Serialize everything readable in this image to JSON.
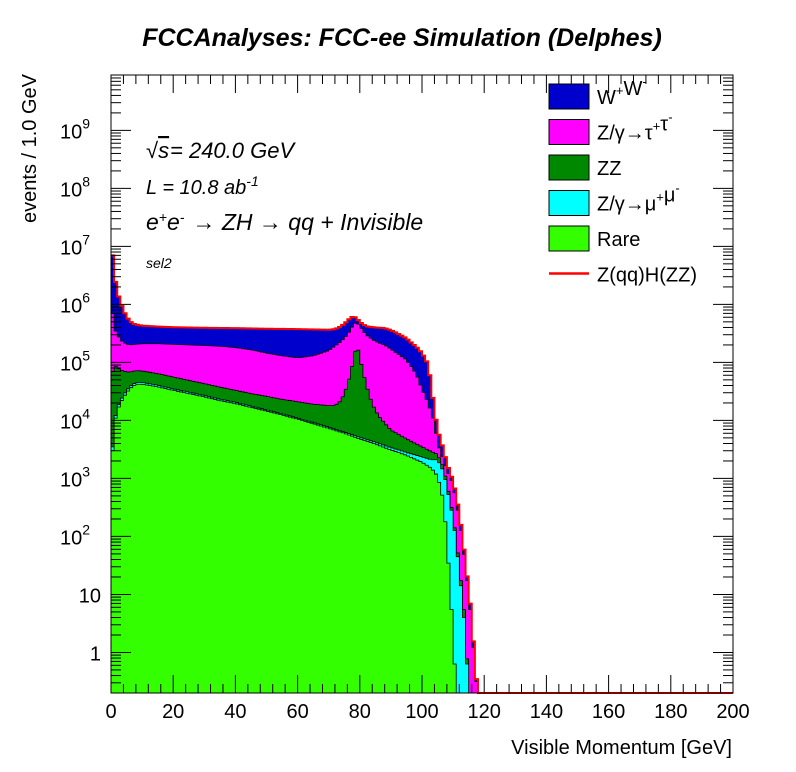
{
  "chart_data": {
    "type": "area",
    "stacked": true,
    "title": "FCCAnalyses: FCC-ee Simulation (Delphes)",
    "xlabel": "Visible Momentum [GeV]",
    "ylabel": "events / 1.0 GeV",
    "xlim": [
      0,
      200
    ],
    "ylim": [
      0.2,
      9000000000
    ],
    "log_y": true,
    "grid": false,
    "legend_position": "top-right",
    "x_ticks": [
      "0",
      "20",
      "40",
      "60",
      "80",
      "100",
      "120",
      "140",
      "160",
      "180",
      "200"
    ],
    "y_ticks": [
      {
        "value": 1,
        "label": "1"
      },
      {
        "value": 10,
        "label": "10"
      },
      {
        "value": 100,
        "label": "10",
        "sup": "2"
      },
      {
        "value": 1000,
        "label": "10",
        "sup": "3"
      },
      {
        "value": 10000,
        "label": "10",
        "sup": "4"
      },
      {
        "value": 100000,
        "label": "10",
        "sup": "5"
      },
      {
        "value": 1000000,
        "label": "10",
        "sup": "6"
      },
      {
        "value": 10000000,
        "label": "10",
        "sup": "7"
      },
      {
        "value": 100000000,
        "label": "10",
        "sup": "8"
      },
      {
        "value": 1000000000,
        "label": "10",
        "sup": "9"
      }
    ],
    "annotations": {
      "sqrt_s": "= 240.0 GeV",
      "lumi": "L = 10.8 ab",
      "lumi_sup": "-1",
      "process": "→ ZH → qq + Invisible",
      "selection": "sel2"
    },
    "note": "x = bin centre in GeV; y = cumulative stacked event counts per bin (top of each band)",
    "series": [
      {
        "name": "Rare",
        "color": "#33ff00",
        "points": [
          [
            0.5,
            3000
          ],
          [
            1,
            8000
          ],
          [
            2,
            15000
          ],
          [
            4,
            25000
          ],
          [
            6,
            35000
          ],
          [
            8,
            42000
          ],
          [
            10,
            42000
          ],
          [
            15,
            38000
          ],
          [
            20,
            33000
          ],
          [
            25,
            29000
          ],
          [
            30,
            25500
          ],
          [
            35,
            22000
          ],
          [
            40,
            19500
          ],
          [
            45,
            16800
          ],
          [
            50,
            14500
          ],
          [
            55,
            12400
          ],
          [
            60,
            10500
          ],
          [
            65,
            8800
          ],
          [
            70,
            7300
          ],
          [
            75,
            6000
          ],
          [
            80,
            4800
          ],
          [
            85,
            3900
          ],
          [
            90,
            3100
          ],
          [
            95,
            2500
          ],
          [
            100,
            1900
          ],
          [
            103,
            1500
          ],
          [
            105,
            1100
          ],
          [
            107,
            400
          ],
          [
            108,
            80
          ],
          [
            109,
            15
          ],
          [
            110,
            2
          ],
          [
            111,
            0.2
          ]
        ]
      },
      {
        "name": "Z/γ→μ⁺μ⁻",
        "color": "#00ffff",
        "points": [
          [
            0.5,
            3500
          ],
          [
            1,
            9000
          ],
          [
            2,
            16500
          ],
          [
            4,
            27500
          ],
          [
            6,
            38000
          ],
          [
            8,
            45000
          ],
          [
            10,
            45000
          ],
          [
            15,
            40500
          ],
          [
            20,
            35000
          ],
          [
            25,
            30800
          ],
          [
            30,
            27000
          ],
          [
            35,
            23300
          ],
          [
            40,
            20600
          ],
          [
            45,
            17700
          ],
          [
            50,
            15200
          ],
          [
            55,
            13000
          ],
          [
            60,
            11000
          ],
          [
            65,
            9200
          ],
          [
            70,
            7700
          ],
          [
            75,
            6300
          ],
          [
            80,
            5100
          ],
          [
            85,
            4200
          ],
          [
            90,
            3400
          ],
          [
            95,
            2800
          ],
          [
            100,
            2350
          ],
          [
            103,
            2100
          ],
          [
            105,
            2100
          ],
          [
            107,
            1300
          ],
          [
            108,
            700
          ],
          [
            109,
            400
          ],
          [
            110,
            200
          ],
          [
            111,
            80
          ],
          [
            112,
            25
          ],
          [
            113,
            8
          ],
          [
            114,
            2
          ],
          [
            115,
            0.2
          ]
        ]
      },
      {
        "name": "ZZ",
        "color": "#008800",
        "points": [
          [
            0.5,
            70000
          ],
          [
            1,
            90000
          ],
          [
            2,
            80000
          ],
          [
            4,
            70000
          ],
          [
            6,
            68000
          ],
          [
            8,
            72000
          ],
          [
            10,
            71000
          ],
          [
            15,
            64000
          ],
          [
            20,
            56000
          ],
          [
            25,
            49000
          ],
          [
            30,
            43000
          ],
          [
            35,
            37500
          ],
          [
            40,
            33000
          ],
          [
            45,
            29000
          ],
          [
            50,
            26000
          ],
          [
            55,
            23000
          ],
          [
            60,
            21000
          ],
          [
            65,
            19000
          ],
          [
            70,
            18000
          ],
          [
            72,
            18000
          ],
          [
            74,
            22000
          ],
          [
            76,
            40000
          ],
          [
            78,
            110000
          ],
          [
            79,
            220000
          ],
          [
            80,
            120000
          ],
          [
            82,
            42000
          ],
          [
            84,
            19000
          ],
          [
            86,
            12000
          ],
          [
            88,
            9000
          ],
          [
            90,
            6800
          ],
          [
            95,
            4800
          ],
          [
            100,
            3500
          ],
          [
            103,
            2900
          ],
          [
            105,
            2600
          ],
          [
            107,
            1500
          ],
          [
            108,
            800
          ],
          [
            109,
            450
          ],
          [
            110,
            220
          ],
          [
            111,
            90
          ],
          [
            112,
            30
          ],
          [
            113,
            10
          ],
          [
            114,
            3
          ],
          [
            115,
            0.2
          ]
        ]
      },
      {
        "name": "Z/γ→τ⁺τ⁻",
        "color": "#ff00ff",
        "points": [
          [
            0.5,
            700000
          ],
          [
            1,
            400000
          ],
          [
            2,
            300000
          ],
          [
            3,
            250000
          ],
          [
            4,
            220000
          ],
          [
            6,
            200000
          ],
          [
            8,
            205000
          ],
          [
            10,
            210000
          ],
          [
            15,
            210000
          ],
          [
            20,
            205000
          ],
          [
            25,
            200000
          ],
          [
            30,
            195000
          ],
          [
            35,
            190000
          ],
          [
            40,
            180000
          ],
          [
            45,
            165000
          ],
          [
            50,
            145000
          ],
          [
            55,
            130000
          ],
          [
            60,
            120000
          ],
          [
            65,
            130000
          ],
          [
            70,
            160000
          ],
          [
            74,
            230000
          ],
          [
            76,
            300000
          ],
          [
            78,
            450000
          ],
          [
            79,
            500000
          ],
          [
            80,
            420000
          ],
          [
            82,
            300000
          ],
          [
            85,
            230000
          ],
          [
            88,
            200000
          ],
          [
            90,
            170000
          ],
          [
            95,
            110000
          ],
          [
            98,
            65000
          ],
          [
            100,
            35000
          ],
          [
            102,
            20000
          ],
          [
            104,
            9000
          ],
          [
            105,
            4000
          ],
          [
            107,
            2000
          ],
          [
            108,
            1400
          ],
          [
            110,
            800
          ],
          [
            111,
            400
          ],
          [
            112,
            200
          ],
          [
            113,
            80
          ],
          [
            114,
            30
          ],
          [
            115,
            10
          ],
          [
            116,
            3
          ],
          [
            117,
            0.5
          ],
          [
            118,
            0.2
          ]
        ]
      },
      {
        "name": "W⁺W⁻",
        "color": "#0000cc",
        "points": [
          [
            0.5,
            7000000
          ],
          [
            1,
            3500000
          ],
          [
            2,
            1700000
          ],
          [
            3,
            1100000
          ],
          [
            4,
            800000
          ],
          [
            5,
            620000
          ],
          [
            6,
            520000
          ],
          [
            7,
            470000
          ],
          [
            8,
            450000
          ],
          [
            10,
            430000
          ],
          [
            15,
            415000
          ],
          [
            20,
            405000
          ],
          [
            25,
            400000
          ],
          [
            30,
            395000
          ],
          [
            35,
            392000
          ],
          [
            40,
            390000
          ],
          [
            45,
            385000
          ],
          [
            50,
            380000
          ],
          [
            55,
            378000
          ],
          [
            60,
            375000
          ],
          [
            65,
            370000
          ],
          [
            70,
            365000
          ],
          [
            72,
            375000
          ],
          [
            74,
            420000
          ],
          [
            76,
            520000
          ],
          [
            77,
            590000
          ],
          [
            78,
            620000
          ],
          [
            79,
            580000
          ],
          [
            80,
            500000
          ],
          [
            82,
            420000
          ],
          [
            85,
            400000
          ],
          [
            88,
            390000
          ],
          [
            90,
            360000
          ],
          [
            93,
            300000
          ],
          [
            95,
            260000
          ],
          [
            97,
            210000
          ],
          [
            99,
            170000
          ],
          [
            101,
            120000
          ],
          [
            102,
            90000
          ],
          [
            103,
            40000
          ],
          [
            104,
            15000
          ],
          [
            105,
            7000
          ],
          [
            107,
            3000
          ],
          [
            108,
            1800
          ],
          [
            110,
            900
          ],
          [
            111,
            500
          ],
          [
            112,
            250
          ],
          [
            113,
            100
          ],
          [
            114,
            35
          ],
          [
            115,
            12
          ],
          [
            116,
            4
          ],
          [
            117,
            0.6
          ],
          [
            118,
            0.2
          ]
        ]
      }
    ],
    "signal": {
      "name": "Z(qq)H(ZZ)",
      "color": "#ff0000",
      "follows_stack_top": true
    }
  }
}
